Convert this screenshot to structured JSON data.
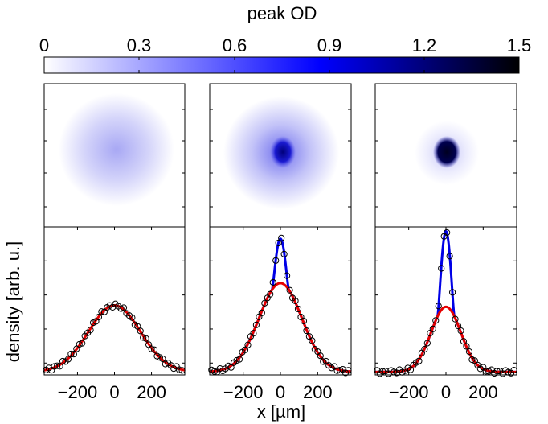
{
  "colorbar": {
    "title": "peak OD",
    "min": 0,
    "max": 1.5,
    "ticks": [
      "0",
      "0.3",
      "0.6",
      "0.9",
      "1.2",
      "1.5"
    ],
    "tick_values": [
      0,
      0.3,
      0.6,
      0.9,
      1.2,
      1.5
    ],
    "colormap": [
      "#ffffff",
      "#0000ff",
      "#000000"
    ]
  },
  "ylabel": "density [arb. u.]",
  "xlabel": "x [µm]",
  "xtick_labels": [
    "−200",
    "0",
    "200"
  ],
  "xtick_values": [
    -200,
    0,
    200
  ],
  "xlim": [
    -380,
    380
  ],
  "panels": [
    {
      "peak_od": 0.32,
      "thermal_width": 130,
      "condensate_od": 0.0
    },
    {
      "peak_od": 0.95,
      "thermal_width": 120,
      "condensate_od": 0.75
    },
    {
      "peak_od": 1.5,
      "thermal_width": 95,
      "condensate_od": 1.25
    }
  ],
  "chart_data": {
    "type": "line",
    "x_unit": "µm",
    "xlim": [
      -380,
      380
    ],
    "ylim": [
      0,
      1.0
    ],
    "panels": [
      {
        "name": "",
        "thermal_curve": {
          "color": "#e60000",
          "amplitude": 0.45,
          "sigma": 140
        },
        "bimodal_curve": {
          "color": "#0000e6",
          "amplitude": 0.0,
          "radius": 0
        },
        "data_points_x": [
          -370,
          -355,
          -340,
          -325,
          -310,
          -295,
          -280,
          -265,
          -250,
          -235,
          -220,
          -205,
          -190,
          -175,
          -160,
          -145,
          -130,
          -115,
          -100,
          -85,
          -70,
          -55,
          -40,
          -25,
          -10,
          5,
          20,
          35,
          50,
          65,
          80,
          95,
          110,
          125,
          140,
          155,
          170,
          185,
          200,
          215,
          230,
          245,
          260,
          275,
          290,
          305,
          320,
          335,
          350,
          365
        ]
      },
      {
        "name": "",
        "thermal_curve": {
          "color": "#e60000",
          "amplitude": 0.6,
          "sigma": 115
        },
        "bimodal_curve": {
          "color": "#0000e6",
          "amplitude": 0.3,
          "radius": 45
        },
        "data_points_x": [
          -370,
          -355,
          -340,
          -325,
          -310,
          -295,
          -280,
          -265,
          -250,
          -235,
          -220,
          -205,
          -190,
          -175,
          -160,
          -145,
          -130,
          -115,
          -100,
          -85,
          -70,
          -55,
          -40,
          -25,
          -10,
          5,
          20,
          35,
          50,
          65,
          80,
          95,
          110,
          125,
          140,
          155,
          170,
          185,
          200,
          215,
          230,
          245,
          260,
          275,
          290,
          305,
          320,
          335,
          350,
          365
        ]
      },
      {
        "name": "",
        "thermal_curve": {
          "color": "#e60000",
          "amplitude": 0.44,
          "sigma": 80
        },
        "bimodal_curve": {
          "color": "#0000e6",
          "amplitude": 0.51,
          "radius": 45
        },
        "data_points_x": [
          -370,
          -355,
          -340,
          -325,
          -310,
          -295,
          -280,
          -265,
          -250,
          -235,
          -220,
          -205,
          -190,
          -175,
          -160,
          -145,
          -130,
          -115,
          -100,
          -85,
          -70,
          -55,
          -40,
          -25,
          -10,
          5,
          20,
          35,
          50,
          65,
          80,
          95,
          110,
          125,
          140,
          155,
          170,
          185,
          200,
          215,
          230,
          245,
          260,
          275,
          290,
          305,
          320,
          335,
          350,
          365
        ]
      }
    ]
  }
}
